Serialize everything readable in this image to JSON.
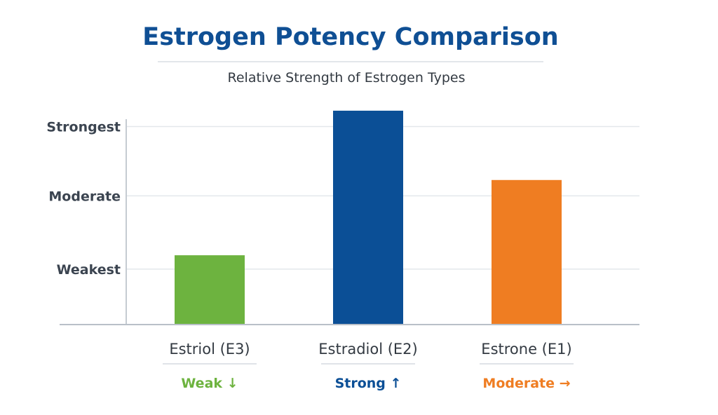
{
  "chart_data": {
    "type": "bar",
    "title": "Estrogen Potency Comparison",
    "subtitle": "Relative Strength of Estrogen Types",
    "categories": [
      "Estriol (E3)",
      "Estradiol (E2)",
      "Estrone (E1)"
    ],
    "values": [
      35,
      108,
      73
    ],
    "category_notes": [
      "Weak ↓",
      "Strong ↑",
      "Moderate →"
    ],
    "colors": [
      "#6db33f",
      "#0b4f96",
      "#ef7d22"
    ],
    "ylim": [
      0,
      110
    ],
    "y_ticks": [
      {
        "label": "Weakest",
        "value": 28
      },
      {
        "label": "Moderate",
        "value": 65
      },
      {
        "label": "Strongest",
        "value": 100
      }
    ],
    "grid": true,
    "title_color": "#0f4f94"
  }
}
